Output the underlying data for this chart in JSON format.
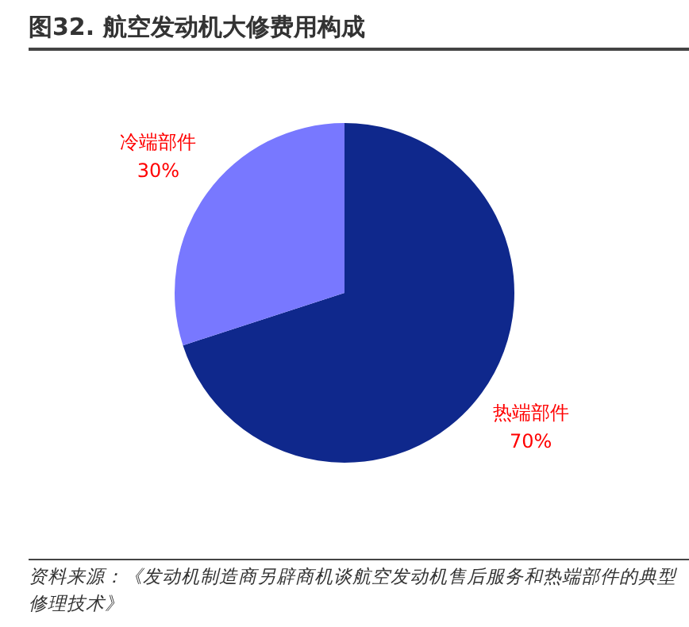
{
  "chart_data": {
    "type": "pie",
    "title": "图32. 航空发动机大修费用构成",
    "categories": [
      "热端部件",
      "冷端部件"
    ],
    "values": [
      70,
      30
    ],
    "colors": [
      "#0f288c",
      "#7878ff"
    ],
    "value_labels": [
      "70%",
      "30%"
    ],
    "annotations": [
      "资料来源：《发动机制造商另辟商机谈航空发动机售后服务和热端部件的典型修理技术》"
    ]
  }
}
